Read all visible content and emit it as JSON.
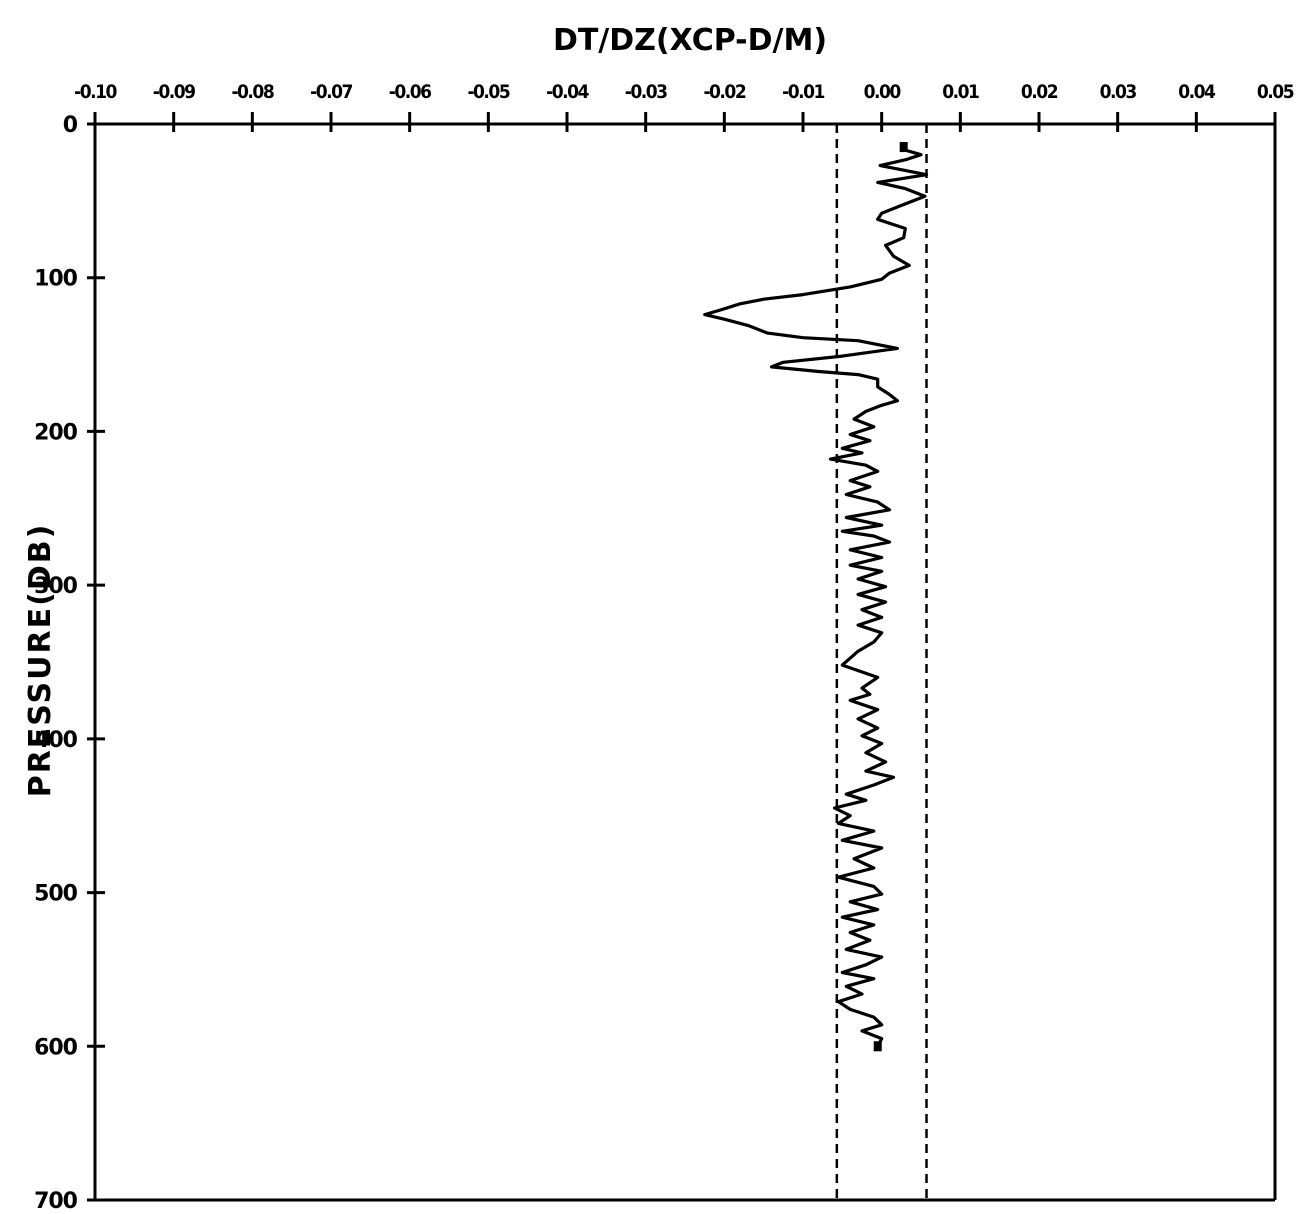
{
  "chart_data": {
    "type": "line",
    "title": "DT/DZ(XCP-D/M)",
    "xlabel": "DT/DZ(XCP-D/M)",
    "ylabel": "PRESSURE(DB)",
    "xlim": [
      -0.1,
      0.05
    ],
    "ylim": [
      0,
      700
    ],
    "y_inverted": true,
    "x_ticks": [
      "-0.10",
      "-0.09",
      "-0.08",
      "-0.07",
      "-0.06",
      "-0.05",
      "-0.04",
      "-0.03",
      "-0.02",
      "-0.01",
      "0.00",
      "0.01",
      "0.02",
      "0.03",
      "0.04",
      "0.05"
    ],
    "y_ticks": [
      "0",
      "100",
      "200",
      "300",
      "400",
      "500",
      "600",
      "700"
    ],
    "grid": false,
    "reference_lines": [
      {
        "x": -0.0057,
        "style": "dashed"
      },
      {
        "x": 0.0057,
        "style": "dashed"
      }
    ],
    "series": [
      {
        "points": [
          [
            0.0028,
            15
          ],
          [
            0.003,
            17
          ],
          [
            0.005,
            20
          ],
          [
            0.0032,
            23
          ],
          [
            -0.0002,
            27
          ],
          [
            0.0057,
            33
          ],
          [
            0.002,
            36
          ],
          [
            -0.0005,
            38
          ],
          [
            0.003,
            42
          ],
          [
            0.0055,
            47
          ],
          [
            0.003,
            52
          ],
          [
            0.0,
            58
          ],
          [
            -0.0005,
            62
          ],
          [
            0.003,
            68
          ],
          [
            0.0028,
            74
          ],
          [
            0.0005,
            79
          ],
          [
            0.0015,
            86
          ],
          [
            0.0035,
            92
          ],
          [
            0.001,
            97
          ],
          [
            0.0,
            101
          ],
          [
            -0.004,
            106
          ],
          [
            -0.01,
            111
          ],
          [
            -0.015,
            114
          ],
          [
            -0.018,
            117
          ],
          [
            -0.0205,
            121
          ],
          [
            -0.0225,
            124
          ],
          [
            -0.02,
            127
          ],
          [
            -0.017,
            131
          ],
          [
            -0.0145,
            136
          ],
          [
            -0.01,
            139
          ],
          [
            -0.003,
            141
          ],
          [
            0.002,
            146
          ],
          [
            -0.005,
            151
          ],
          [
            -0.0125,
            155
          ],
          [
            -0.014,
            158
          ],
          [
            -0.008,
            161
          ],
          [
            -0.003,
            163
          ],
          [
            -0.0005,
            166
          ],
          [
            -0.0005,
            171
          ],
          [
            0.001,
            176
          ],
          [
            0.002,
            180
          ],
          [
            0.0,
            183
          ],
          [
            -0.002,
            187
          ],
          [
            -0.0035,
            192
          ],
          [
            -0.001,
            197
          ],
          [
            -0.004,
            202
          ],
          [
            -0.0015,
            206
          ],
          [
            -0.005,
            211
          ],
          [
            -0.0025,
            214
          ],
          [
            -0.0065,
            218
          ],
          [
            -0.002,
            222
          ],
          [
            -0.0005,
            226
          ],
          [
            -0.004,
            232
          ],
          [
            -0.0015,
            236
          ],
          [
            -0.0045,
            241
          ],
          [
            -0.0005,
            246
          ],
          [
            0.001,
            251
          ],
          [
            -0.0045,
            256
          ],
          [
            0.0,
            261
          ],
          [
            -0.005,
            265
          ],
          [
            -0.001,
            268
          ],
          [
            0.001,
            272
          ],
          [
            -0.004,
            277
          ],
          [
            0.0,
            282
          ],
          [
            -0.004,
            287
          ],
          [
            0.0,
            291
          ],
          [
            -0.003,
            296
          ],
          [
            0.0005,
            301
          ],
          [
            -0.003,
            306
          ],
          [
            0.0005,
            311
          ],
          [
            -0.0025,
            316
          ],
          [
            0.0,
            321
          ],
          [
            -0.003,
            326
          ],
          [
            0.0,
            331
          ],
          [
            -0.001,
            337
          ],
          [
            -0.003,
            343
          ],
          [
            -0.005,
            352
          ],
          [
            -0.0005,
            360
          ],
          [
            -0.0025,
            367
          ],
          [
            -0.0015,
            371
          ],
          [
            -0.004,
            375
          ],
          [
            -0.0005,
            381
          ],
          [
            -0.003,
            387
          ],
          [
            -0.0005,
            393
          ],
          [
            -0.0025,
            398
          ],
          [
            0.0,
            403
          ],
          [
            -0.002,
            409
          ],
          [
            0.0005,
            415
          ],
          [
            -0.002,
            421
          ],
          [
            0.0015,
            425
          ],
          [
            -0.001,
            430
          ],
          [
            -0.0045,
            436
          ],
          [
            -0.002,
            440
          ],
          [
            -0.006,
            445
          ],
          [
            -0.004,
            450
          ],
          [
            -0.0055,
            455
          ],
          [
            -0.001,
            460
          ],
          [
            -0.005,
            466
          ],
          [
            0.0,
            471
          ],
          [
            -0.0035,
            478
          ],
          [
            -0.001,
            484
          ],
          [
            -0.0055,
            490
          ],
          [
            -0.001,
            496
          ],
          [
            0.0,
            501
          ],
          [
            -0.004,
            506
          ],
          [
            -0.0005,
            511
          ],
          [
            -0.005,
            516
          ],
          [
            -0.001,
            521
          ],
          [
            -0.004,
            526
          ],
          [
            -0.0015,
            531
          ],
          [
            -0.0045,
            537
          ],
          [
            0.0,
            542
          ],
          [
            -0.002,
            547
          ],
          [
            -0.005,
            552
          ],
          [
            -0.001,
            556
          ],
          [
            -0.0045,
            561
          ],
          [
            -0.0025,
            566
          ],
          [
            -0.0055,
            571
          ],
          [
            -0.004,
            576
          ],
          [
            -0.001,
            581
          ],
          [
            0.0,
            586
          ],
          [
            -0.0025,
            590
          ],
          [
            0.0,
            595
          ],
          [
            -0.0005,
            600
          ]
        ]
      }
    ]
  }
}
